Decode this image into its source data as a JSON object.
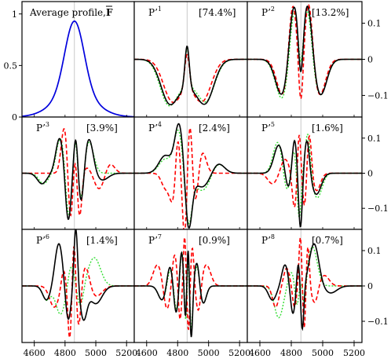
{
  "figure": {
    "x_ticks": [
      4600,
      4800,
      5000,
      5200
    ],
    "left_y_ticks": [
      {
        "value": 0,
        "label": "0",
        "color": "#0000cc"
      },
      {
        "value": 0.5,
        "label": "0.5",
        "color": "#0000cc"
      },
      {
        "value": 1,
        "label": "1",
        "color": "#0000cc"
      }
    ],
    "right_y_ticks": [
      {
        "value": 0.1,
        "label": "0.1"
      },
      {
        "value": 0,
        "label": "0"
      },
      {
        "value": -0.1,
        "label": "−0.1"
      }
    ],
    "vertical_reference_line_x": 4861,
    "colors": {
      "mean": "#0000dd",
      "black": "#000000",
      "red": "#ff0000",
      "green": "#33dd33",
      "ref_line": "#bbbbbb"
    }
  },
  "chart_data": [
    {
      "type": "line",
      "panel": "mean",
      "title": "Average profile, ",
      "title_symbol": "F",
      "xlim": [
        4520,
        5250
      ],
      "ylim": [
        0,
        1.12
      ],
      "series": [
        {
          "color": "#0000dd",
          "style": "solid",
          "center": 4861,
          "amplitude": 0.93,
          "description_points": [
            [
              4580,
              0.0
            ],
            [
              4700,
              0.18
            ],
            [
              4800,
              0.62
            ],
            [
              4861,
              0.93
            ],
            [
              4920,
              0.62
            ],
            [
              5020,
              0.18
            ],
            [
              5140,
              0.0
            ]
          ]
        }
      ]
    },
    {
      "type": "line",
      "panel": "P1",
      "title": "P’",
      "index": "1",
      "percent": "[74.4%]",
      "xlim": [
        4520,
        5250
      ],
      "ylim": [
        -0.16,
        0.16
      ],
      "shape": [
        [
          4861,
          -0.06,
          4720,
          70
        ],
        [
          4861,
          0.13,
          4861,
          14
        ]
      ]
    },
    {
      "type": "line",
      "panel": "P2",
      "title": "P’",
      "index": "2",
      "percent": "[13.2%]",
      "xlim": [
        4520,
        5250
      ],
      "ylim": [
        -0.16,
        0.16
      ]
    },
    {
      "type": "line",
      "panel": "P3",
      "title": "P’",
      "index": "3",
      "percent": "[3.9%]",
      "xlim": [
        4520,
        5250
      ],
      "ylim": [
        -0.16,
        0.16
      ]
    },
    {
      "type": "line",
      "panel": "P4",
      "title": "P’",
      "index": "4",
      "percent": "[2.4%]",
      "xlim": [
        4520,
        5250
      ],
      "ylim": [
        -0.16,
        0.16
      ]
    },
    {
      "type": "line",
      "panel": "P5",
      "title": "P’",
      "index": "5",
      "percent": "[1.6%]",
      "xlim": [
        4520,
        5250
      ],
      "ylim": [
        -0.16,
        0.16
      ]
    },
    {
      "type": "line",
      "panel": "P6",
      "title": "P’",
      "index": "6",
      "percent": "[1.4%]",
      "xlim": [
        4520,
        5250
      ],
      "ylim": [
        -0.16,
        0.16
      ]
    },
    {
      "type": "line",
      "panel": "P7",
      "title": "P’",
      "index": "7",
      "percent": "[0.9%]",
      "xlim": [
        4520,
        5250
      ],
      "ylim": [
        -0.16,
        0.16
      ]
    },
    {
      "type": "line",
      "panel": "P8",
      "title": "P’",
      "index": "8",
      "percent": "[0.7%]",
      "xlim": [
        4520,
        5250
      ],
      "ylim": [
        -0.16,
        0.16
      ]
    }
  ]
}
